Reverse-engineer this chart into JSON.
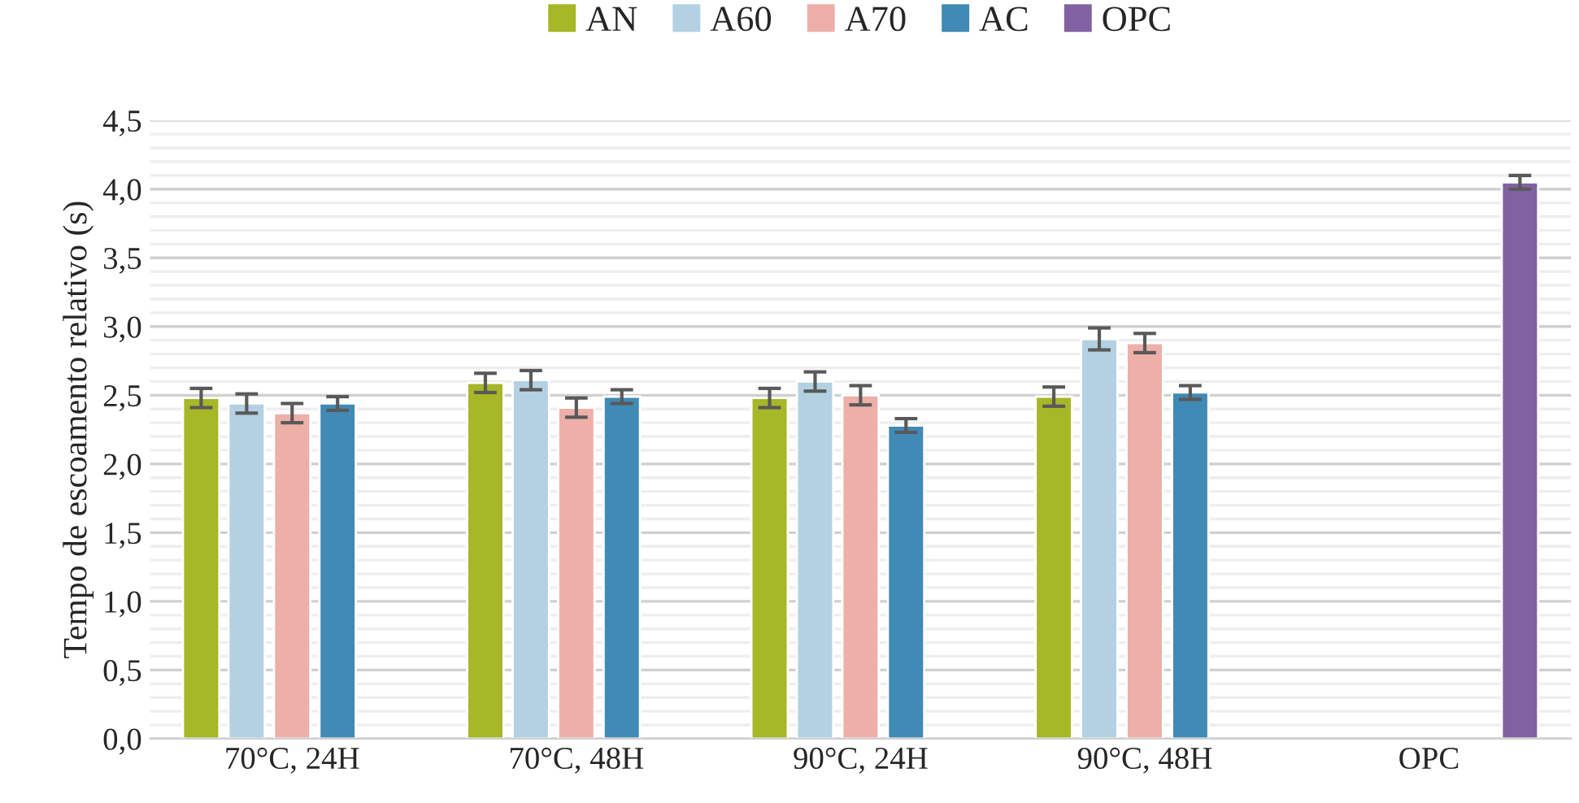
{
  "chart_data": {
    "type": "bar",
    "ylabel": "Tempo de escoamento relativo (s)",
    "categories": [
      "70°C, 24H",
      "70°C, 48H",
      "90°C, 24H",
      "90°C, 48H",
      "OPC"
    ],
    "series": [
      {
        "name": "AN",
        "color": "#a6b727",
        "values": [
          2.48,
          2.59,
          2.48,
          2.49,
          null
        ],
        "errors": [
          0.07,
          0.07,
          0.07,
          0.07,
          null
        ]
      },
      {
        "name": "A60",
        "color": "#b3d1e2",
        "values": [
          2.44,
          2.61,
          2.6,
          2.91,
          null
        ],
        "errors": [
          0.07,
          0.07,
          0.07,
          0.08,
          null
        ]
      },
      {
        "name": "A70",
        "color": "#eeafa8",
        "values": [
          2.37,
          2.41,
          2.5,
          2.88,
          null
        ],
        "errors": [
          0.07,
          0.07,
          0.07,
          0.07,
          null
        ]
      },
      {
        "name": "AC",
        "color": "#408ab5",
        "values": [
          2.44,
          2.49,
          2.28,
          2.52,
          null
        ],
        "errors": [
          0.05,
          0.05,
          0.05,
          0.05,
          null
        ]
      },
      {
        "name": "OPC",
        "color": "#8062a2",
        "values": [
          null,
          null,
          null,
          null,
          4.05
        ],
        "errors": [
          null,
          null,
          null,
          null,
          0.05
        ]
      }
    ],
    "ylim": [
      0,
      4.5
    ],
    "yticks": [
      {
        "value": 0,
        "label": "0,0"
      },
      {
        "value": 0.5,
        "label": "0,5"
      },
      {
        "value": 1,
        "label": "1,0"
      },
      {
        "value": 1.5,
        "label": "1,5"
      },
      {
        "value": 2,
        "label": "2,0"
      },
      {
        "value": 2.5,
        "label": "2,5"
      },
      {
        "value": 3,
        "label": "3,0"
      },
      {
        "value": 3.5,
        "label": "3,5"
      },
      {
        "value": 4,
        "label": "4,0"
      },
      {
        "value": 4.5,
        "label": "4,5"
      }
    ],
    "grid": "y",
    "legend": "top"
  }
}
